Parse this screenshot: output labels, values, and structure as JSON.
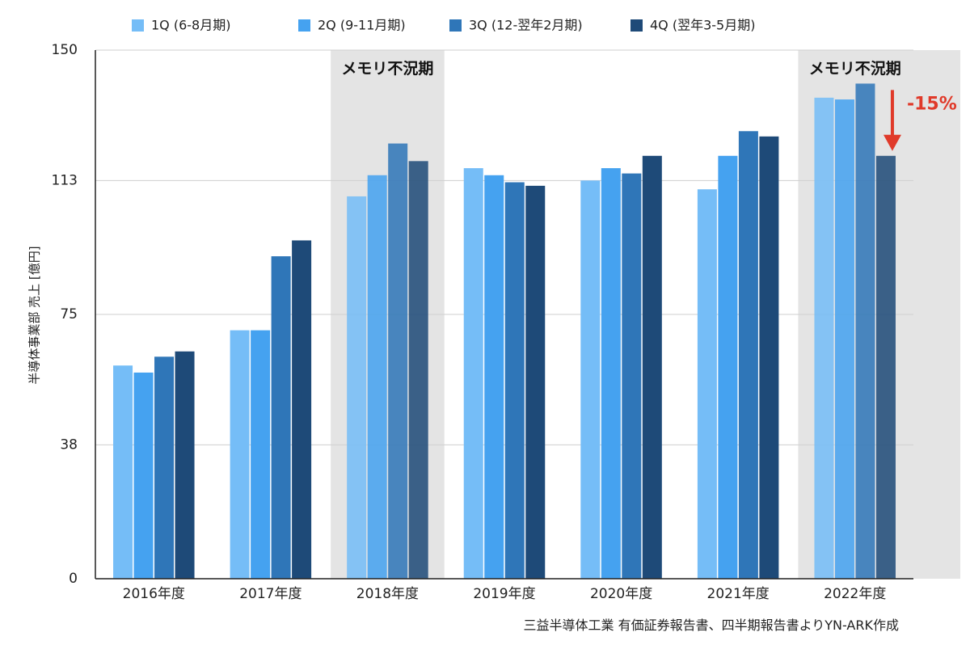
{
  "chart_data": {
    "type": "bar",
    "categories": [
      "2016年度",
      "2017年度",
      "2018年度",
      "2019年度",
      "2020年度",
      "2021年度",
      "2022年度"
    ],
    "series": [
      {
        "name": "1Q (6-8月期)",
        "color": "#75bdf7",
        "values": [
          60.5,
          70.5,
          108.5,
          116.5,
          113.0,
          110.5,
          136.5
        ]
      },
      {
        "name": "2Q (9-11月期)",
        "color": "#45a2f0",
        "values": [
          58.5,
          70.5,
          114.5,
          114.5,
          116.5,
          120.0,
          136.0
        ]
      },
      {
        "name": "3Q (12-翌年2月期)",
        "color": "#2f76b8",
        "values": [
          63.0,
          91.5,
          123.5,
          112.5,
          115.0,
          127.0,
          140.5
        ]
      },
      {
        "name": "4Q (翌年3-5月期)",
        "color": "#1e4a78",
        "values": [
          64.5,
          96.0,
          118.5,
          111.5,
          120.0,
          125.5,
          120.0
        ]
      }
    ],
    "ylabel": "半導体事業部 売上 [億円]",
    "yticks": [
      0,
      38,
      75,
      113,
      150
    ],
    "ylim": [
      0,
      150
    ],
    "grid": true,
    "legend_position": "top",
    "shaded_periods": [
      {
        "category": "2018年度",
        "label": "メモリ不況期"
      },
      {
        "category": "2022年度",
        "label": "メモリ不況期"
      }
    ],
    "annotation": {
      "text": "-15%",
      "color": "#e03a2a"
    },
    "source_note": "三益半導体工業 有価証券報告書、四半期報告書よりYN-ARK作成"
  }
}
